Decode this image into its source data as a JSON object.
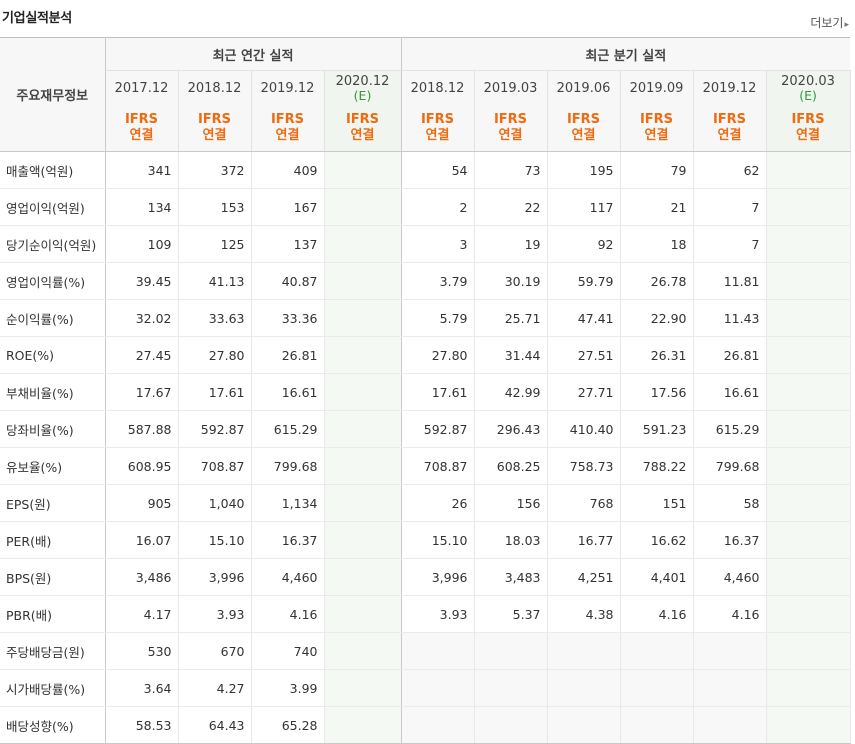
{
  "title": "기업실적분석",
  "more_label": "더보기",
  "row_head_label": "주요재무정보",
  "groups": {
    "annual": "최근 연간 실적",
    "quarter": "최근 분기 실적"
  },
  "annual_periods": [
    {
      "year": "2017.12",
      "est": ""
    },
    {
      "year": "2018.12",
      "est": ""
    },
    {
      "year": "2019.12",
      "est": ""
    },
    {
      "year": "2020.12",
      "est": "(E)"
    }
  ],
  "quarter_periods": [
    {
      "year": "2018.12",
      "est": ""
    },
    {
      "year": "2019.03",
      "est": ""
    },
    {
      "year": "2019.06",
      "est": ""
    },
    {
      "year": "2019.09",
      "est": ""
    },
    {
      "year": "2019.12",
      "est": ""
    },
    {
      "year": "2020.03",
      "est": "(E)"
    }
  ],
  "ifrs_line1": "IFRS",
  "ifrs_line2": "연결",
  "rows": [
    {
      "label": "매출액(억원)",
      "annual": [
        "341",
        "372",
        "409",
        ""
      ],
      "quarter": [
        "54",
        "73",
        "195",
        "79",
        "62",
        ""
      ]
    },
    {
      "label": "영업이익(억원)",
      "annual": [
        "134",
        "153",
        "167",
        ""
      ],
      "quarter": [
        "2",
        "22",
        "117",
        "21",
        "7",
        ""
      ]
    },
    {
      "label": "당기순이익(억원)",
      "annual": [
        "109",
        "125",
        "137",
        ""
      ],
      "quarter": [
        "3",
        "19",
        "92",
        "18",
        "7",
        ""
      ]
    },
    {
      "label": "영업이익률(%)",
      "annual": [
        "39.45",
        "41.13",
        "40.87",
        ""
      ],
      "quarter": [
        "3.79",
        "30.19",
        "59.79",
        "26.78",
        "11.81",
        ""
      ]
    },
    {
      "label": "순이익률(%)",
      "annual": [
        "32.02",
        "33.63",
        "33.36",
        ""
      ],
      "quarter": [
        "5.79",
        "25.71",
        "47.41",
        "22.90",
        "11.43",
        ""
      ]
    },
    {
      "label": "ROE(%)",
      "annual": [
        "27.45",
        "27.80",
        "26.81",
        ""
      ],
      "quarter": [
        "27.80",
        "31.44",
        "27.51",
        "26.31",
        "26.81",
        ""
      ]
    },
    {
      "label": "부채비율(%)",
      "annual": [
        "17.67",
        "17.61",
        "16.61",
        ""
      ],
      "quarter": [
        "17.61",
        "42.99",
        "27.71",
        "17.56",
        "16.61",
        ""
      ]
    },
    {
      "label": "당좌비율(%)",
      "annual": [
        "587.88",
        "592.87",
        "615.29",
        ""
      ],
      "quarter": [
        "592.87",
        "296.43",
        "410.40",
        "591.23",
        "615.29",
        ""
      ]
    },
    {
      "label": "유보율(%)",
      "annual": [
        "608.95",
        "708.87",
        "799.68",
        ""
      ],
      "quarter": [
        "708.87",
        "608.25",
        "758.73",
        "788.22",
        "799.68",
        ""
      ]
    },
    {
      "label": "EPS(원)",
      "annual": [
        "905",
        "1,040",
        "1,134",
        ""
      ],
      "quarter": [
        "26",
        "156",
        "768",
        "151",
        "58",
        ""
      ]
    },
    {
      "label": "PER(배)",
      "annual": [
        "16.07",
        "15.10",
        "16.37",
        ""
      ],
      "quarter": [
        "15.10",
        "18.03",
        "16.77",
        "16.62",
        "16.37",
        ""
      ]
    },
    {
      "label": "BPS(원)",
      "annual": [
        "3,486",
        "3,996",
        "4,460",
        ""
      ],
      "quarter": [
        "3,996",
        "3,483",
        "4,251",
        "4,401",
        "4,460",
        ""
      ]
    },
    {
      "label": "PBR(배)",
      "annual": [
        "4.17",
        "3.93",
        "4.16",
        ""
      ],
      "quarter": [
        "3.93",
        "5.37",
        "4.38",
        "4.16",
        "4.16",
        ""
      ]
    },
    {
      "label": "주당배당금(원)",
      "annual": [
        "530",
        "670",
        "740",
        ""
      ],
      "quarter": [
        "",
        "",
        "",
        "",
        "",
        ""
      ]
    },
    {
      "label": "시가배당률(%)",
      "annual": [
        "3.64",
        "4.27",
        "3.99",
        ""
      ],
      "quarter": [
        "",
        "",
        "",
        "",
        "",
        ""
      ]
    },
    {
      "label": "배당성향(%)",
      "annual": [
        "58.53",
        "64.43",
        "65.28",
        ""
      ],
      "quarter": [
        "",
        "",
        "",
        "",
        "",
        ""
      ]
    }
  ]
}
